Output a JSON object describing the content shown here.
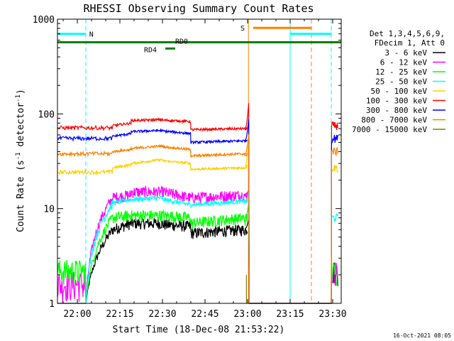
{
  "chart_data": {
    "type": "line",
    "title": "RHESSI Observing Summary Count Rates",
    "xlabel": "Start Time (18-Dec-08 21:53:22)",
    "ylabel": "Count Rate (s",
    "ylabel_sup": "-1",
    "ylabel_mid": " detector",
    "ylabel_sup2": "-1",
    "ylabel_end": ")",
    "y_scale": "log",
    "ylim": [
      1,
      1000
    ],
    "xlim_minutes": [
      -7,
      93
    ],
    "x_ticks": [
      {
        "label": "22:00",
        "min": 0
      },
      {
        "label": "22:15",
        "min": 15
      },
      {
        "label": "22:30",
        "min": 30
      },
      {
        "label": "22:45",
        "min": 45
      },
      {
        "label": "23:00",
        "min": 60
      },
      {
        "label": "23:15",
        "min": 75
      },
      {
        "label": "23:30",
        "min": 90
      }
    ],
    "y_ticks": [
      {
        "label": "1",
        "value": 1
      },
      {
        "label": "10",
        "value": 10
      },
      {
        "label": "100",
        "value": 100
      },
      {
        "label": "1000",
        "value": 1000
      }
    ],
    "legend_header": [
      "Det 1,3,4,5,6,9,",
      "FDecim 1, Att 0"
    ],
    "series": [
      {
        "name": "3 - 6 keV",
        "color": "#000000",
        "segments": [
          [
            12.5,
            6,
            7
          ],
          [
            19,
            7,
            7
          ],
          [
            30,
            6.8,
            6.5
          ],
          [
            40,
            5.5,
            6
          ],
          [
            59,
            5.8,
            6.2
          ]
        ]
      },
      {
        "name": "6 - 12 keV",
        "color": "#ff00ff",
        "segments": [
          [
            12.5,
            13,
            14
          ],
          [
            19,
            15,
            15
          ],
          [
            30,
            15,
            13
          ],
          [
            40,
            13,
            14
          ],
          [
            59,
            13,
            14
          ]
        ]
      },
      {
        "name": "12 - 25 keV",
        "color": "#00ff00",
        "segments": [
          [
            12.5,
            8,
            8.5
          ],
          [
            19,
            8.5,
            8.5
          ],
          [
            30,
            8.5,
            8
          ],
          [
            40,
            7,
            8
          ],
          [
            59,
            7.5,
            8
          ]
        ]
      },
      {
        "name": "25 - 50 keV",
        "color": "#00ffff",
        "segments": [
          [
            12.5,
            11.5,
            12.5
          ],
          [
            19,
            12.5,
            13
          ],
          [
            30,
            12.5,
            11
          ],
          [
            40,
            11,
            12
          ],
          [
            59,
            11.5,
            12
          ]
        ]
      },
      {
        "name": "50 - 100 keV",
        "color": "#ffd000",
        "segments": [
          [
            12.5,
            27,
            29
          ],
          [
            19,
            30,
            33
          ],
          [
            30,
            32,
            30
          ],
          [
            40,
            26,
            27
          ],
          [
            59,
            27,
            28
          ]
        ]
      },
      {
        "name": "100 - 300 keV",
        "color": "#ff0000",
        "segments": [
          [
            12.5,
            75,
            80
          ],
          [
            19,
            85,
            87
          ],
          [
            30,
            86,
            83
          ],
          [
            40,
            68,
            70
          ],
          [
            59,
            70,
            70
          ]
        ]
      },
      {
        "name": "300 - 800 keV",
        "color": "#0000ff",
        "segments": [
          [
            12.5,
            58,
            62
          ],
          [
            19,
            65,
            67
          ],
          [
            30,
            66,
            62
          ],
          [
            40,
            50,
            52
          ],
          [
            59,
            52,
            53
          ]
        ]
      },
      {
        "name": "800 - 7000 keV",
        "color": "#ff8000",
        "segments": [
          [
            12.5,
            40,
            42
          ],
          [
            19,
            43,
            46
          ],
          [
            30,
            45,
            42
          ],
          [
            40,
            36,
            38
          ],
          [
            59,
            36,
            38
          ]
        ]
      },
      {
        "name": "7000 - 15000 keV",
        "color": "#808000",
        "segments": []
      }
    ],
    "annotations": {
      "night": {
        "label": "N",
        "color": "#00ffff"
      },
      "saa": {
        "label": "S",
        "color": "#ff8000"
      },
      "rd0": {
        "label": "RD0",
        "color": "#008000"
      },
      "rd4": {
        "label": "RD4",
        "color": "#008000"
      }
    },
    "footer_stamp": "16-Oct-2021 08:05"
  }
}
